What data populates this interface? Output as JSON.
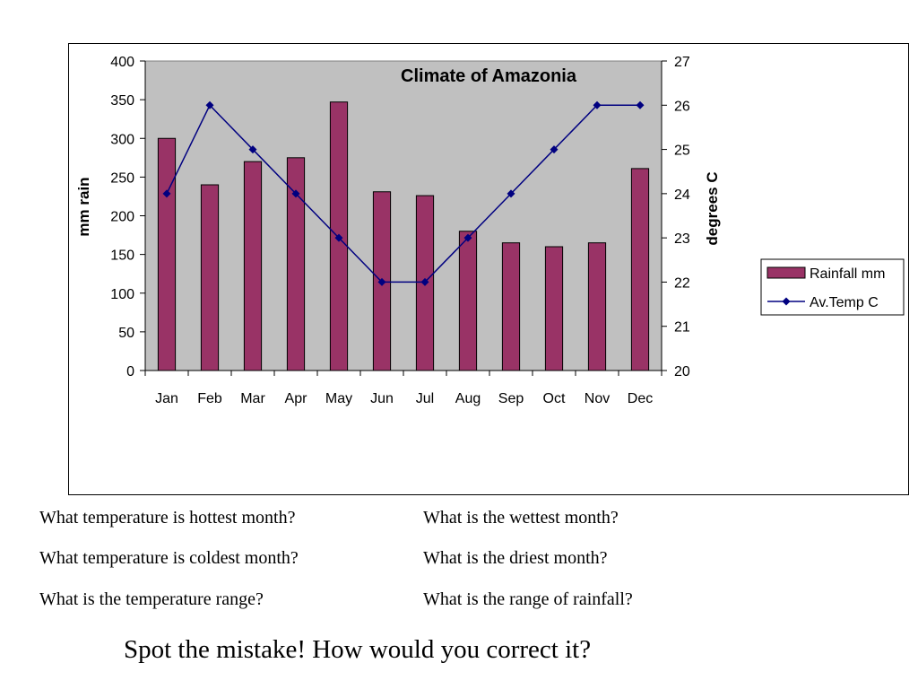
{
  "chart_data": {
    "type": "bar-line",
    "title": "Climate of Amazonia",
    "categories": [
      "Jan",
      "Feb",
      "Mar",
      "Apr",
      "May",
      "Jun",
      "Jul",
      "Aug",
      "Sep",
      "Oct",
      "Nov",
      "Dec"
    ],
    "series": [
      {
        "name": "Rainfall mm",
        "type": "bar",
        "axis": "left",
        "values": [
          300,
          240,
          270,
          275,
          347,
          231,
          226,
          180,
          165,
          160,
          165,
          261
        ]
      },
      {
        "name": "Av.Temp C",
        "type": "line",
        "axis": "right",
        "values": [
          24,
          26,
          25,
          24,
          23,
          22,
          22,
          23,
          24,
          25,
          26,
          26
        ]
      }
    ],
    "ylabel": "mm rain",
    "ylabel_right": "degrees C",
    "ylim": [
      0,
      400
    ],
    "ylim_right": [
      20,
      27
    ],
    "yticks": [
      0,
      50,
      100,
      150,
      200,
      250,
      300,
      350,
      400
    ],
    "yticks_right": [
      20,
      21,
      22,
      23,
      24,
      25,
      26,
      27
    ],
    "grid": false,
    "legend": "right",
    "colors": {
      "plot_bg": "#c0c0c0",
      "bar": "#993366",
      "line": "#000080"
    }
  },
  "questions": {
    "left": [
      "What temperature is hottest month?",
      "What temperature is coldest month?",
      "What is the temperature range?"
    ],
    "right": [
      "What is the wettest month?",
      "What is the driest month?",
      "What is the range of rainfall?"
    ]
  },
  "prompt": "Spot the mistake!  How would you correct it?"
}
